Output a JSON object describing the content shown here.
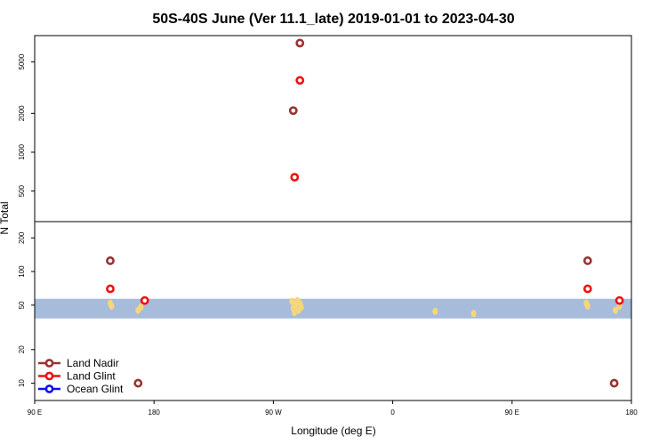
{
  "chart_data": {
    "type": "scatter",
    "title": "50S-40S June (Ver 11.1_late)   2019-01-01 to 2023-04-30",
    "xlabel": "Longitude (deg E)",
    "ylabel": "N Total",
    "x_ticks": [
      {
        "value": 90,
        "label": "90 E"
      },
      {
        "value": 180,
        "label": "180"
      },
      {
        "value": 270,
        "label": "90 W"
      },
      {
        "value": 360,
        "label": "0"
      },
      {
        "value": 450,
        "label": "90 E"
      },
      {
        "value": 540,
        "label": "180"
      }
    ],
    "xlim": [
      90,
      540
    ],
    "x_unit_note": "longitude unwrapped from 90 E; 180 = dateline, 360 = 0",
    "y_scale": "log",
    "panels": [
      {
        "name": "upper",
        "ylim": [
          290,
          8000
        ],
        "y_ticks": [
          500,
          1000,
          2000,
          5000
        ]
      },
      {
        "name": "lower",
        "ylim": [
          7,
          280
        ],
        "y_ticks": [
          10,
          20,
          50,
          100,
          200
        ]
      }
    ],
    "band": {
      "ymin": 38,
      "ymax": 57,
      "color": "#a7bcdb"
    },
    "series": [
      {
        "name": "Land Nadir",
        "color": "#993333",
        "points": [
          {
            "x": 147,
            "y": 125
          },
          {
            "x": 168,
            "y": 10
          },
          {
            "x": 285,
            "y": 2100
          },
          {
            "x": 290,
            "y": 7000
          },
          {
            "x": 507,
            "y": 125
          },
          {
            "x": 527,
            "y": 10
          }
        ]
      },
      {
        "name": "Land Glint",
        "color": "#ee1111",
        "points": [
          {
            "x": 147,
            "y": 70
          },
          {
            "x": 173,
            "y": 55
          },
          {
            "x": 286,
            "y": 640
          },
          {
            "x": 290,
            "y": 3600
          },
          {
            "x": 507,
            "y": 70
          },
          {
            "x": 531,
            "y": 55
          }
        ]
      },
      {
        "name": "Ocean Glint",
        "color": "#1111ee",
        "points": []
      }
    ],
    "land_marks": {
      "color": "#f5d77a",
      "points": [
        {
          "x": 147,
          "y": 52
        },
        {
          "x": 148,
          "y": 49
        },
        {
          "x": 168,
          "y": 45
        },
        {
          "x": 170,
          "y": 48
        },
        {
          "x": 284,
          "y": 54
        },
        {
          "x": 285,
          "y": 47
        },
        {
          "x": 286,
          "y": 43
        },
        {
          "x": 287,
          "y": 51
        },
        {
          "x": 288,
          "y": 55
        },
        {
          "x": 289,
          "y": 45
        },
        {
          "x": 290,
          "y": 52
        },
        {
          "x": 291,
          "y": 48
        },
        {
          "x": 392,
          "y": 44
        },
        {
          "x": 421,
          "y": 42
        },
        {
          "x": 506,
          "y": 52
        },
        {
          "x": 507,
          "y": 49
        },
        {
          "x": 528,
          "y": 45
        },
        {
          "x": 531,
          "y": 49
        }
      ]
    },
    "legend": {
      "position": "bottom-left",
      "entries": [
        {
          "label": "Land Nadir",
          "color": "#993333"
        },
        {
          "label": "Land Glint",
          "color": "#ee1111"
        },
        {
          "label": "Ocean Glint",
          "color": "#1111ee"
        }
      ]
    },
    "grid": false
  }
}
